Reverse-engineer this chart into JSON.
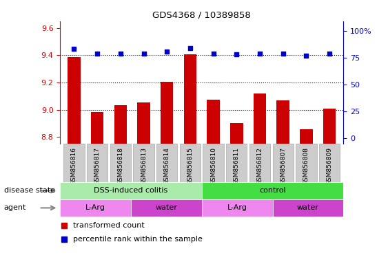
{
  "title": "GDS4368 / 10389858",
  "samples": [
    "GSM856816",
    "GSM856817",
    "GSM856818",
    "GSM856813",
    "GSM856814",
    "GSM856815",
    "GSM856810",
    "GSM856811",
    "GSM856812",
    "GSM856807",
    "GSM856808",
    "GSM856809"
  ],
  "bar_values": [
    9.385,
    8.985,
    9.035,
    9.055,
    9.205,
    9.405,
    9.075,
    8.905,
    9.12,
    9.07,
    8.855,
    9.01
  ],
  "percentile_values": [
    83,
    79,
    79,
    79,
    81,
    84,
    79,
    78,
    79,
    79,
    77,
    79
  ],
  "ylim_left": [
    8.75,
    9.65
  ],
  "ylim_right": [
    -5,
    109
  ],
  "yticks_left": [
    8.8,
    9.0,
    9.2,
    9.4,
    9.6
  ],
  "yticks_right": [
    0,
    25,
    50,
    75,
    100
  ],
  "bar_color": "#cc0000",
  "dot_color": "#0000cc",
  "disease_state_labels": [
    {
      "label": "DSS-induced colitis",
      "start": 0,
      "end": 6,
      "color": "#aaeaaa"
    },
    {
      "label": "control",
      "start": 6,
      "end": 12,
      "color": "#44dd44"
    }
  ],
  "agent_labels": [
    {
      "label": "L-Arg",
      "start": 0,
      "end": 3,
      "color": "#ee88ee"
    },
    {
      "label": "water",
      "start": 3,
      "end": 6,
      "color": "#cc44cc"
    },
    {
      "label": "L-Arg",
      "start": 6,
      "end": 9,
      "color": "#ee88ee"
    },
    {
      "label": "water",
      "start": 9,
      "end": 12,
      "color": "#cc44cc"
    }
  ],
  "legend_items": [
    {
      "label": "transformed count",
      "color": "#cc0000"
    },
    {
      "label": "percentile rank within the sample",
      "color": "#0000cc"
    }
  ],
  "left_label_color": "#cc0000",
  "right_label_color": "#0000cc",
  "dotted_line_values": [
    9.0,
    9.2,
    9.4
  ],
  "tick_label_bg": "#cccccc",
  "tick_label_border": "#aaaaaa"
}
